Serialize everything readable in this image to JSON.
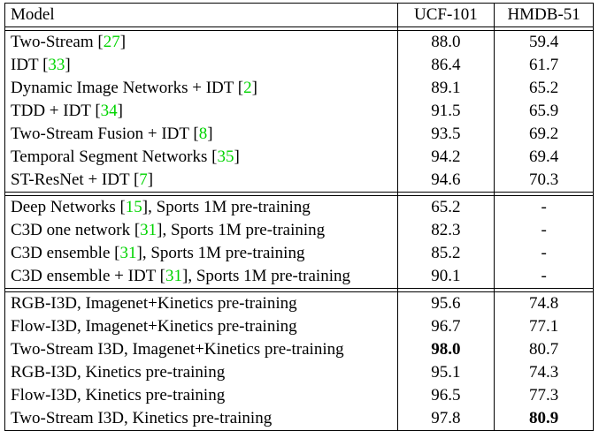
{
  "table": {
    "headers": [
      "Model",
      "UCF-101",
      "HMDB-51"
    ],
    "groups": [
      [
        {
          "model": "Two-Stream ",
          "ref": "27",
          "suffix": "",
          "ucf": "88.0",
          "hmdb": "59.4"
        },
        {
          "model": "IDT ",
          "ref": "33",
          "suffix": "",
          "ucf": "86.4",
          "hmdb": "61.7"
        },
        {
          "model": "Dynamic Image Networks + IDT ",
          "ref": "2",
          "suffix": "",
          "ucf": "89.1",
          "hmdb": "65.2"
        },
        {
          "model": "TDD + IDT ",
          "ref": "34",
          "suffix": "",
          "ucf": "91.5",
          "hmdb": "65.9"
        },
        {
          "model": "Two-Stream Fusion + IDT ",
          "ref": "8",
          "suffix": "",
          "ucf": "93.5",
          "hmdb": "69.2"
        },
        {
          "model": "Temporal Segment Networks ",
          "ref": "35",
          "suffix": "",
          "ucf": "94.2",
          "hmdb": "69.4"
        },
        {
          "model": "ST-ResNet + IDT ",
          "ref": "7",
          "suffix": "",
          "ucf": "94.6",
          "hmdb": "70.3"
        }
      ],
      [
        {
          "model": "Deep Networks ",
          "ref": "15",
          "suffix": ", Sports 1M pre-training",
          "ucf": "65.2",
          "hmdb": "-"
        },
        {
          "model": "C3D one network ",
          "ref": "31",
          "suffix": ", Sports 1M pre-training",
          "ucf": "82.3",
          "hmdb": "-"
        },
        {
          "model": "C3D ensemble ",
          "ref": "31",
          "suffix": ", Sports 1M pre-training",
          "ucf": "85.2",
          "hmdb": "-"
        },
        {
          "model": "C3D ensemble + IDT ",
          "ref": "31",
          "suffix": ", Sports 1M pre-training",
          "ucf": "90.1",
          "hmdb": "-"
        }
      ],
      [
        {
          "model": "RGB-I3D, Imagenet+Kinetics pre-training",
          "ref": "",
          "suffix": "",
          "ucf": "95.6",
          "hmdb": "74.8"
        },
        {
          "model": "Flow-I3D, Imagenet+Kinetics pre-training",
          "ref": "",
          "suffix": "",
          "ucf": "96.7",
          "hmdb": "77.1"
        },
        {
          "model": "Two-Stream I3D, Imagenet+Kinetics pre-training",
          "ref": "",
          "suffix": "",
          "ucf": "98.0",
          "hmdb": "80.7",
          "bold": "ucf"
        },
        {
          "model": "RGB-I3D, Kinetics pre-training",
          "ref": "",
          "suffix": "",
          "ucf": "95.1",
          "hmdb": "74.3"
        },
        {
          "model": "Flow-I3D, Kinetics pre-training",
          "ref": "",
          "suffix": "",
          "ucf": "96.5",
          "hmdb": "77.3"
        },
        {
          "model": "Two-Stream I3D, Kinetics pre-training",
          "ref": "",
          "suffix": "",
          "ucf": "97.8",
          "hmdb": "80.9",
          "bold": "hmdb"
        }
      ]
    ]
  }
}
